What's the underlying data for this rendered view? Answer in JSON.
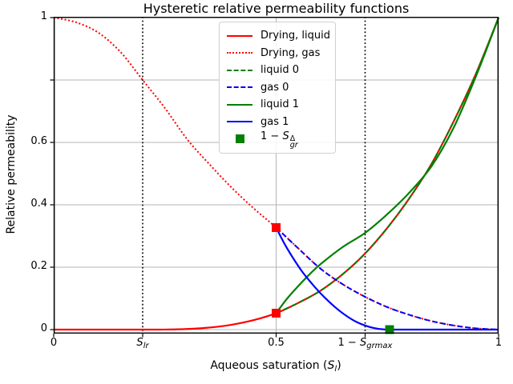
{
  "figure": {
    "background": "#ffffff"
  },
  "chart_data": {
    "type": "line",
    "title": "Hysteretic relative permeability functions",
    "ylabel": "Relative permeability",
    "xlabel": {
      "prefix": "Aqueous saturation (",
      "base": "S",
      "sub": "l",
      "suffix": ")"
    },
    "xlim": [
      0,
      1
    ],
    "ylim": [
      -0.013,
      1
    ],
    "grid": true,
    "grid_color": "#b4b4b4",
    "x_ticks": [
      {
        "value": 0,
        "label": "0"
      },
      {
        "value": 0.2,
        "math": {
          "base": "S",
          "sub": "lr"
        }
      },
      {
        "value": 0.5,
        "label": "0.5"
      },
      {
        "value": 0.7,
        "math": {
          "prefix": "1 − ",
          "base": "S",
          "sub": "grmax"
        }
      },
      {
        "value": 1,
        "label": "1"
      }
    ],
    "y_ticks": [
      {
        "value": 0,
        "label": "0"
      },
      {
        "value": 0.2,
        "label": "0.2"
      },
      {
        "value": 0.4,
        "label": "0.4"
      },
      {
        "value": 0.6,
        "label": "0.6"
      },
      {
        "value": 0.8,
        "label": ""
      },
      {
        "value": 1,
        "label": "1"
      }
    ],
    "vlines": [
      {
        "x": 0.2,
        "style": "dotted",
        "color": "#000000",
        "name": "vline-slr"
      },
      {
        "x": 0.7,
        "style": "dotted",
        "color": "#000000",
        "name": "vline-1-sgrmax"
      }
    ],
    "series": [
      {
        "name": "Drying, liquid",
        "id": "drying-liquid",
        "color": "#ff0000",
        "style": "solid",
        "points": [
          [
            0,
            0
          ],
          [
            0.05,
            0
          ],
          [
            0.1,
            0
          ],
          [
            0.15,
            0
          ],
          [
            0.2,
            0
          ],
          [
            0.25,
            0.0002
          ],
          [
            0.3,
            0.002
          ],
          [
            0.35,
            0.0066
          ],
          [
            0.4,
            0.0156
          ],
          [
            0.45,
            0.0305
          ],
          [
            0.5,
            0.0527
          ],
          [
            0.55,
            0.0857
          ],
          [
            0.6,
            0.125
          ],
          [
            0.65,
            0.178
          ],
          [
            0.7,
            0.244
          ],
          [
            0.75,
            0.326
          ],
          [
            0.8,
            0.422
          ],
          [
            0.85,
            0.533
          ],
          [
            0.9,
            0.67
          ],
          [
            0.95,
            0.823
          ],
          [
            1,
            1
          ]
        ]
      },
      {
        "name": "Drying, gas",
        "id": "drying-gas",
        "color": "#ff0000",
        "style": "dotted",
        "points": [
          [
            0,
            1
          ],
          [
            0.05,
            0.985
          ],
          [
            0.1,
            0.952
          ],
          [
            0.15,
            0.89
          ],
          [
            0.2,
            0.8
          ],
          [
            0.25,
            0.71
          ],
          [
            0.3,
            0.61
          ],
          [
            0.35,
            0.53
          ],
          [
            0.4,
            0.455
          ],
          [
            0.45,
            0.388
          ],
          [
            0.5,
            0.327
          ],
          [
            0.55,
            0.26
          ],
          [
            0.6,
            0.195
          ],
          [
            0.65,
            0.145
          ],
          [
            0.7,
            0.105
          ],
          [
            0.75,
            0.072
          ],
          [
            0.8,
            0.047
          ],
          [
            0.85,
            0.027
          ],
          [
            0.9,
            0.013
          ],
          [
            0.95,
            0.004
          ],
          [
            1,
            0
          ]
        ]
      },
      {
        "name": "liquid 0",
        "id": "liquid-0",
        "color": "#008000",
        "style": "dashed",
        "points": [
          [
            0.5,
            0.0527
          ],
          [
            0.55,
            0.0857
          ],
          [
            0.6,
            0.125
          ],
          [
            0.65,
            0.178
          ],
          [
            0.7,
            0.244
          ],
          [
            0.75,
            0.326
          ],
          [
            0.8,
            0.422
          ],
          [
            0.85,
            0.533
          ],
          [
            0.9,
            0.67
          ],
          [
            0.95,
            0.823
          ],
          [
            1,
            1
          ]
        ]
      },
      {
        "name": "gas 0",
        "id": "gas-0",
        "color": "#0000ff",
        "style": "dashed",
        "points": [
          [
            0.5,
            0.327
          ],
          [
            0.55,
            0.26
          ],
          [
            0.6,
            0.195
          ],
          [
            0.65,
            0.145
          ],
          [
            0.7,
            0.105
          ],
          [
            0.75,
            0.072
          ],
          [
            0.8,
            0.047
          ],
          [
            0.85,
            0.027
          ],
          [
            0.9,
            0.013
          ],
          [
            0.95,
            0.004
          ],
          [
            1,
            0
          ]
        ]
      },
      {
        "name": "liquid 1",
        "id": "liquid-1",
        "color": "#008000",
        "style": "solid",
        "points": [
          [
            0.5,
            0.0527
          ],
          [
            0.525,
            0.1
          ],
          [
            0.55,
            0.14
          ],
          [
            0.575,
            0.177
          ],
          [
            0.6,
            0.21
          ],
          [
            0.65,
            0.265
          ],
          [
            0.7,
            0.31
          ],
          [
            0.75,
            0.37
          ],
          [
            0.8,
            0.44
          ],
          [
            0.85,
            0.525
          ],
          [
            0.9,
            0.65
          ],
          [
            0.95,
            0.815
          ],
          [
            1,
            1
          ]
        ]
      },
      {
        "name": "gas 1",
        "id": "gas-1",
        "color": "#0000ff",
        "style": "solid",
        "points": [
          [
            0.5,
            0.327
          ],
          [
            0.52,
            0.272
          ],
          [
            0.54,
            0.225
          ],
          [
            0.56,
            0.183
          ],
          [
            0.58,
            0.148
          ],
          [
            0.6,
            0.116
          ],
          [
            0.62,
            0.088
          ],
          [
            0.64,
            0.063
          ],
          [
            0.66,
            0.042
          ],
          [
            0.68,
            0.025
          ],
          [
            0.7,
            0.013
          ],
          [
            0.72,
            0.005
          ],
          [
            0.74,
            0.001
          ],
          [
            0.755,
            0
          ],
          [
            0.8,
            0
          ],
          [
            0.9,
            0
          ],
          [
            1,
            0
          ]
        ]
      }
    ],
    "markers": [
      {
        "x": 0.5,
        "y": 0.327,
        "color": "#ff0000",
        "shape": "square",
        "name": "reversal-point-gas"
      },
      {
        "x": 0.5,
        "y": 0.0527,
        "color": "#ff0000",
        "shape": "square",
        "name": "reversal-point-liquid"
      },
      {
        "x": 0.755,
        "y": 0,
        "color": "#008000",
        "shape": "square",
        "name": "trapped-gas-point"
      }
    ],
    "legend": {
      "position": "upper-center",
      "entries": [
        {
          "label": "Drying, liquid",
          "color": "#ff0000",
          "style": "solid"
        },
        {
          "label": "Drying, gas",
          "color": "#ff0000",
          "style": "dotted"
        },
        {
          "label": "liquid 0",
          "color": "#008000",
          "style": "dashed"
        },
        {
          "label": "gas 0",
          "color": "#0000ff",
          "style": "dashed"
        },
        {
          "label": "liquid 1",
          "color": "#008000",
          "style": "solid"
        },
        {
          "label": "gas 1",
          "color": "#0000ff",
          "style": "solid"
        },
        {
          "math": {
            "prefix": "1 − ",
            "base": "S",
            "sup": "Δ",
            "sub": "gr"
          },
          "color": "#008000",
          "style": "marker-square"
        }
      ]
    }
  }
}
